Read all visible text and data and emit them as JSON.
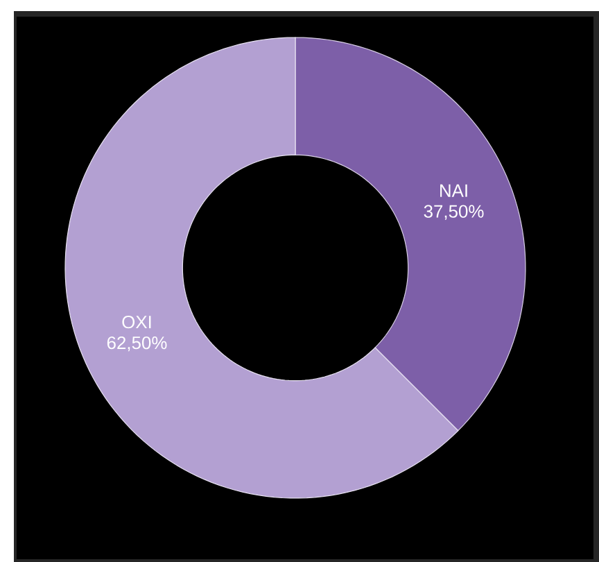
{
  "chart_data": {
    "type": "donut",
    "categories": [
      "NAI",
      "OXI"
    ],
    "values": [
      37.5,
      62.5
    ],
    "value_labels": [
      "37,50%",
      "62,50%"
    ],
    "colors": [
      "#7d5fa8",
      "#b3a0d2"
    ]
  }
}
